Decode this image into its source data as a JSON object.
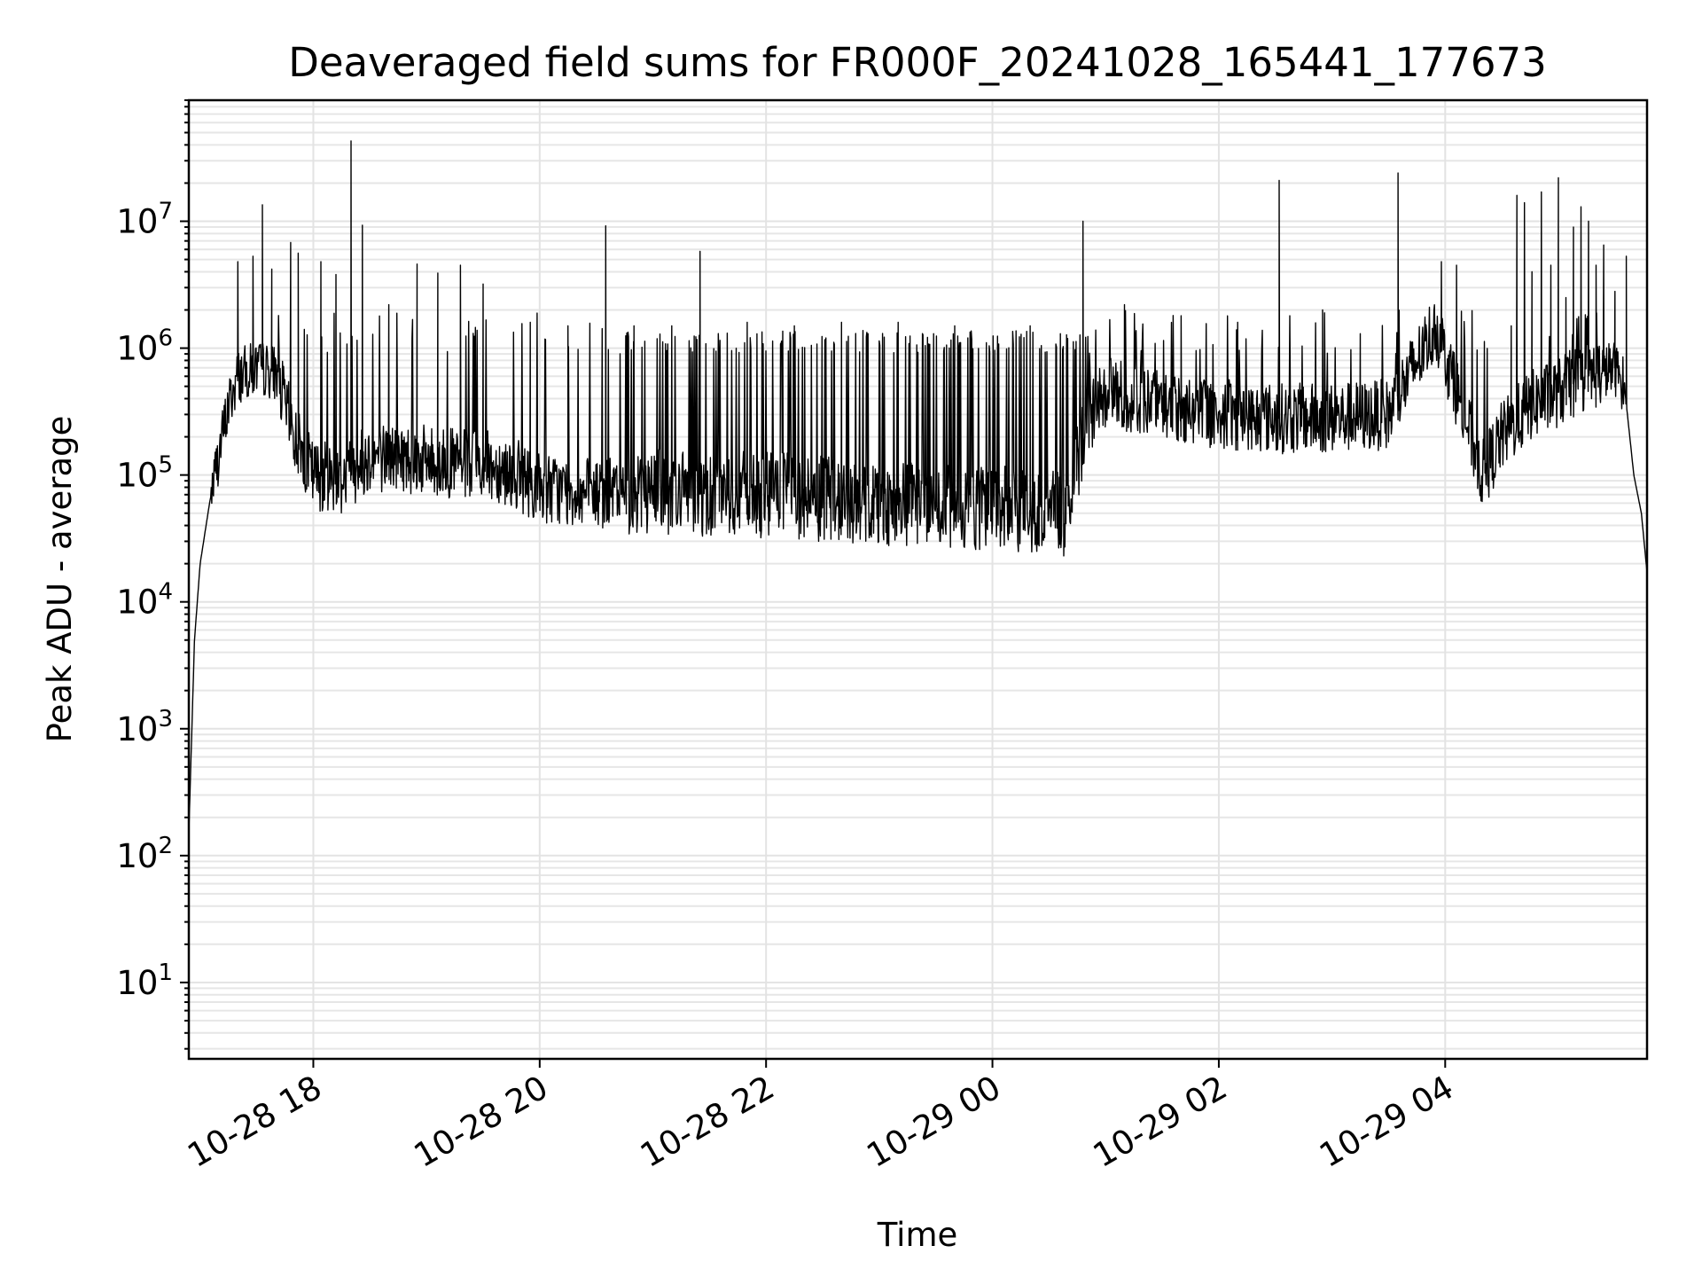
{
  "chart_data": {
    "type": "line",
    "title": "Deaveraged field sums for FR000F_20241028_165441_177673",
    "xlabel": "Time",
    "ylabel": "Peak ADU - average",
    "yscale": "log",
    "ylim": [
      2.5,
      90000000
    ],
    "xlim": [
      "2024-10-28 16:54",
      "2024-10-29 05:47"
    ],
    "grid": {
      "major": true,
      "minor": true
    },
    "x_ticks": [
      {
        "value": "2024-10-28 18:00",
        "label": "10-28 18"
      },
      {
        "value": "2024-10-28 20:00",
        "label": "10-28 20"
      },
      {
        "value": "2024-10-28 22:00",
        "label": "10-28 22"
      },
      {
        "value": "2024-10-29 00:00",
        "label": "10-29 00"
      },
      {
        "value": "2024-10-29 02:00",
        "label": "10-29 02"
      },
      {
        "value": "2024-10-29 04:00",
        "label": "10-29 04"
      }
    ],
    "y_ticks": [
      {
        "value": 10,
        "base": "10",
        "exp": "1"
      },
      {
        "value": 100,
        "base": "10",
        "exp": "2"
      },
      {
        "value": 1000,
        "base": "10",
        "exp": "3"
      },
      {
        "value": 10000,
        "base": "10",
        "exp": "4"
      },
      {
        "value": 100000,
        "base": "10",
        "exp": "5"
      },
      {
        "value": 1000000,
        "base": "10",
        "exp": "6"
      },
      {
        "value": 10000000,
        "base": "10",
        "exp": "7"
      }
    ],
    "color": "#000000",
    "baseline": [
      [
        "2024-10-28 16:54",
        150
      ],
      [
        "2024-10-28 16:57",
        5000
      ],
      [
        "2024-10-28 17:00",
        20000
      ],
      [
        "2024-10-28 17:05",
        60000
      ],
      [
        "2024-10-28 17:10",
        150000
      ],
      [
        "2024-10-28 17:15",
        350000
      ],
      [
        "2024-10-28 17:20",
        600000
      ],
      [
        "2024-10-28 17:30",
        700000
      ],
      [
        "2024-10-28 17:40",
        650000
      ],
      [
        "2024-10-28 17:50",
        200000
      ],
      [
        "2024-10-28 18:00",
        100000
      ],
      [
        "2024-10-28 18:15",
        95000
      ],
      [
        "2024-10-28 18:30",
        140000
      ],
      [
        "2024-10-28 18:45",
        140000
      ],
      [
        "2024-10-28 19:00",
        130000
      ],
      [
        "2024-10-28 19:20",
        120000
      ],
      [
        "2024-10-28 19:40",
        115000
      ],
      [
        "2024-10-28 20:00",
        80000
      ],
      [
        "2024-10-28 20:30",
        70000
      ],
      [
        "2024-10-28 21:00",
        75000
      ],
      [
        "2024-10-28 21:30",
        70000
      ],
      [
        "2024-10-28 22:00",
        70000
      ],
      [
        "2024-10-28 22:30",
        65000
      ],
      [
        "2024-10-28 23:00",
        60000
      ],
      [
        "2024-10-28 23:30",
        55000
      ],
      [
        "2024-10-29 00:00",
        55000
      ],
      [
        "2024-10-29 00:40",
        50000
      ],
      [
        "2024-10-29 00:50",
        300000
      ],
      [
        "2024-10-29 01:00",
        450000
      ],
      [
        "2024-10-29 01:15",
        400000
      ],
      [
        "2024-10-29 01:30",
        350000
      ],
      [
        "2024-10-29 02:00",
        300000
      ],
      [
        "2024-10-29 02:30",
        280000
      ],
      [
        "2024-10-29 03:00",
        280000
      ],
      [
        "2024-10-29 03:30",
        300000
      ],
      [
        "2024-10-29 03:55",
        1500000
      ],
      [
        "2024-10-29 04:10",
        300000
      ],
      [
        "2024-10-29 04:20",
        100000
      ],
      [
        "2024-10-29 04:30",
        200000
      ],
      [
        "2024-10-29 04:45",
        350000
      ],
      [
        "2024-10-29 05:00",
        450000
      ],
      [
        "2024-10-29 05:15",
        600000
      ],
      [
        "2024-10-29 05:30",
        700000
      ],
      [
        "2024-10-29 05:35",
        500000
      ],
      [
        "2024-10-29 05:40",
        100000
      ],
      [
        "2024-10-29 05:44",
        50000
      ],
      [
        "2024-10-29 05:47",
        17000
      ]
    ],
    "spikes": [
      [
        "2024-10-28 17:20",
        4800000
      ],
      [
        "2024-10-28 17:28",
        5300000
      ],
      [
        "2024-10-28 17:33",
        13500000
      ],
      [
        "2024-10-28 17:38",
        4200000
      ],
      [
        "2024-10-28 17:48",
        6800000
      ],
      [
        "2024-10-28 17:52",
        5600000
      ],
      [
        "2024-10-28 18:04",
        4800000
      ],
      [
        "2024-10-28 18:12",
        3800000
      ],
      [
        "2024-10-28 18:20",
        43000000
      ],
      [
        "2024-10-28 18:26",
        9300000
      ],
      [
        "2024-10-28 18:40",
        2200000
      ],
      [
        "2024-10-28 18:55",
        4600000
      ],
      [
        "2024-10-28 19:06",
        3900000
      ],
      [
        "2024-10-28 19:18",
        4500000
      ],
      [
        "2024-10-28 19:30",
        3200000
      ],
      [
        "2024-10-28 19:55",
        1600000
      ],
      [
        "2024-10-28 20:15",
        1500000
      ],
      [
        "2024-10-28 20:35",
        9200000
      ],
      [
        "2024-10-28 20:50",
        1500000
      ],
      [
        "2024-10-28 21:10",
        1500000
      ],
      [
        "2024-10-28 21:25",
        5800000
      ],
      [
        "2024-10-28 21:50",
        1600000
      ],
      [
        "2024-10-28 22:15",
        1500000
      ],
      [
        "2024-10-28 22:40",
        1600000
      ],
      [
        "2024-10-28 23:10",
        1600000
      ],
      [
        "2024-10-28 23:40",
        1500000
      ],
      [
        "2024-10-29 00:20",
        1500000
      ],
      [
        "2024-10-29 00:48",
        10000000
      ],
      [
        "2024-10-29 01:10",
        2200000
      ],
      [
        "2024-10-29 01:40",
        1800000
      ],
      [
        "2024-10-29 02:10",
        1600000
      ],
      [
        "2024-10-29 02:32",
        21000000
      ],
      [
        "2024-10-29 02:55",
        2000000
      ],
      [
        "2024-10-29 03:15",
        1300000
      ],
      [
        "2024-10-29 03:35",
        24000000
      ],
      [
        "2024-10-29 03:58",
        4800000
      ],
      [
        "2024-10-29 04:06",
        4500000
      ],
      [
        "2024-10-29 04:35",
        1500000
      ],
      [
        "2024-10-29 04:38",
        16000000
      ],
      [
        "2024-10-29 04:42",
        14000000
      ],
      [
        "2024-10-29 04:46",
        4000000
      ],
      [
        "2024-10-29 04:51",
        17000000
      ],
      [
        "2024-10-29 04:56",
        4500000
      ],
      [
        "2024-10-29 05:00",
        22000000
      ],
      [
        "2024-10-29 05:04",
        2500000
      ],
      [
        "2024-10-29 05:08",
        9000000
      ],
      [
        "2024-10-29 05:12",
        13000000
      ],
      [
        "2024-10-29 05:16",
        10000000
      ],
      [
        "2024-10-29 05:20",
        4500000
      ],
      [
        "2024-10-29 05:24",
        6500000
      ],
      [
        "2024-10-29 05:30",
        2800000
      ],
      [
        "2024-10-29 05:36",
        5300000
      ]
    ]
  }
}
